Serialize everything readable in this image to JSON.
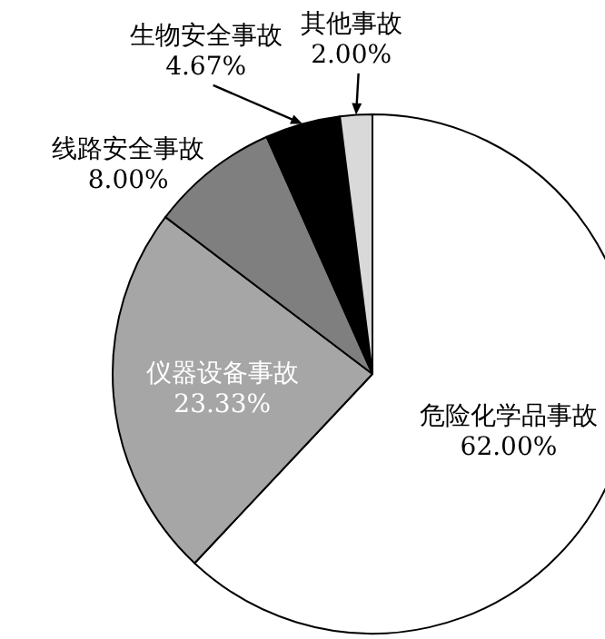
{
  "chart_data": {
    "type": "pie",
    "categories": [
      "危险化学品事故",
      "仪器设备事故",
      "线路安全事故",
      "生物安全事故",
      "其他事故"
    ],
    "values": [
      62,
      23.33,
      8,
      4.67,
      2
    ],
    "value_labels": [
      "62.00%",
      "23.33%",
      "8.00%",
      "4.67%",
      "2.00%"
    ],
    "colors": [
      "#ffffff",
      "#a6a6a6",
      "#7f7f7f",
      "#000000",
      "#d9d9d9"
    ]
  }
}
